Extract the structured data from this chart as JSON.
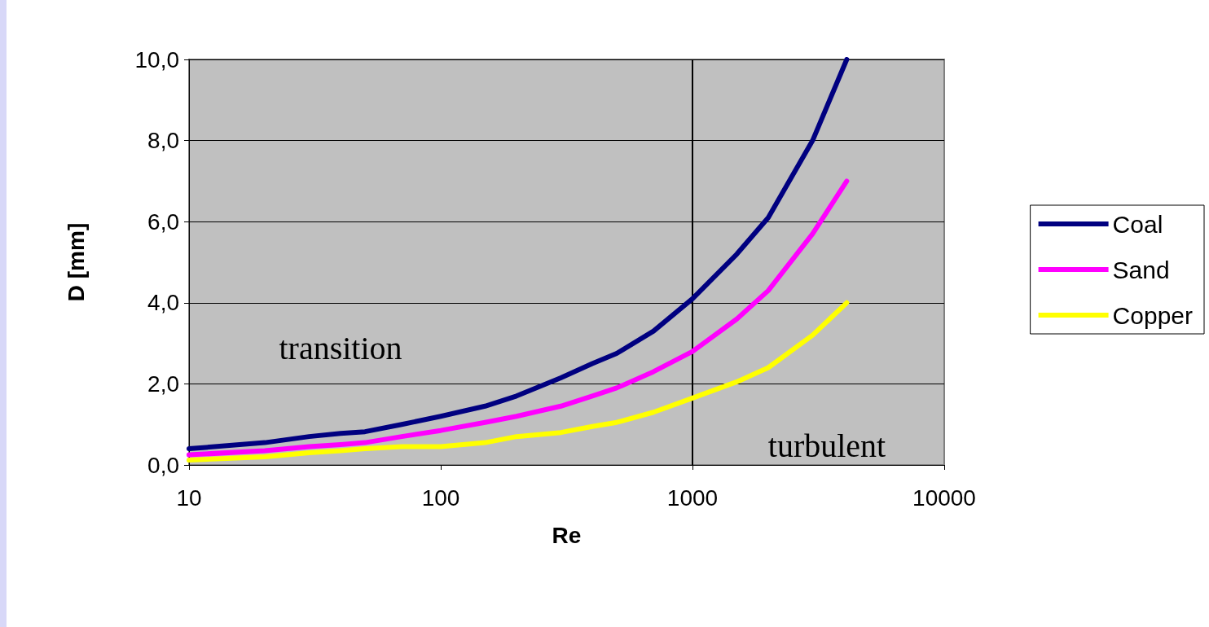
{
  "chart_data": {
    "type": "line",
    "xlabel": "Re",
    "ylabel": "D [mm]",
    "log": "x",
    "grid": "y",
    "legend": "right",
    "marker": "none",
    "line_style": "solid",
    "x": [
      10,
      20,
      30,
      40,
      50,
      70,
      100,
      150,
      200,
      300,
      400,
      500,
      700,
      1000,
      1500,
      2000,
      3000,
      4100
    ],
    "xlim": [
      10,
      10000
    ],
    "xticks": [
      10,
      100,
      1000,
      10000
    ],
    "ylim": [
      0,
      10
    ],
    "yticks": [
      {
        "value": 0,
        "label": "0,0"
      },
      {
        "value": 2,
        "label": "2,0"
      },
      {
        "value": 4,
        "label": "4,0"
      },
      {
        "value": 6,
        "label": "6,0"
      },
      {
        "value": 8,
        "label": "8,0"
      },
      {
        "value": 10,
        "label": "10,0"
      }
    ],
    "series": [
      {
        "name": "Coal",
        "color": "#000080",
        "values": [
          0.4,
          0.55,
          0.7,
          0.78,
          0.82,
          1.0,
          1.2,
          1.45,
          1.7,
          2.15,
          2.5,
          2.75,
          3.3,
          4.1,
          5.2,
          6.1,
          8.0,
          10.0
        ]
      },
      {
        "name": "Sand",
        "color": "#ff00ff",
        "values": [
          0.25,
          0.35,
          0.45,
          0.5,
          0.55,
          0.7,
          0.85,
          1.05,
          1.2,
          1.45,
          1.7,
          1.9,
          2.3,
          2.8,
          3.6,
          4.3,
          5.7,
          7.0
        ]
      },
      {
        "name": "Copper",
        "color": "#ffff00",
        "values": [
          0.12,
          0.2,
          0.3,
          0.35,
          0.4,
          0.45,
          0.45,
          0.55,
          0.7,
          0.8,
          0.95,
          1.05,
          1.3,
          1.65,
          2.05,
          2.4,
          3.2,
          4.0
        ]
      }
    ],
    "ref_lines": [
      {
        "axis": "x",
        "value": 1000,
        "color": "#000000"
      }
    ],
    "annotations": [
      "transition",
      "turbulent"
    ]
  }
}
